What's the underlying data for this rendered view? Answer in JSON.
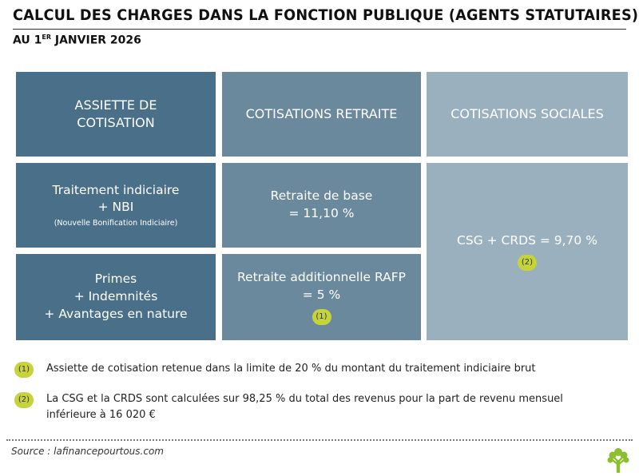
{
  "header": {
    "title": "CALCUL DES CHARGES DANS LA FONCTION PUBLIQUE (AGENTS STATUTAIRES)",
    "subtitle_prefix": "AU 1",
    "subtitle_sup": "ER",
    "subtitle_suffix": " JANVIER 2026"
  },
  "columns": {
    "assiette": {
      "line1": "ASSIETTE DE",
      "line2": "COTISATION"
    },
    "retraite": {
      "label": "COTISATIONS RETRAITE"
    },
    "sociales": {
      "label": "COTISATIONS SOCIALES"
    }
  },
  "cells": {
    "traitement": {
      "line1": "Traitement indiciaire",
      "line2": "+ NBI",
      "small": "(Nouvelle Bonification Indiciaire)"
    },
    "retraite_base": {
      "line1": "Retraite de base",
      "line2": "= 11,10 %"
    },
    "csg": {
      "line1": "CSG + CRDS = 9,70 %",
      "badge": "(2)"
    },
    "primes": {
      "line1": "Primes",
      "line2": "+ Indemnités",
      "line3": "+ Avantages en nature"
    },
    "rafp": {
      "line1": "Retraite additionnelle RAFP",
      "line2": "= 5 %",
      "badge": "(1)"
    }
  },
  "notes": [
    {
      "badge": "(1)",
      "lines": [
        "Assiette de cotisation retenue dans la limite de 20 % du montant du traitement indiciaire brut"
      ]
    },
    {
      "badge": "(2)",
      "lines": [
        "La CSG et la CRDS sont calculées sur 98,25 % du total des revenus pour la part de revenu mensuel",
        "inférieure à 16 020 €"
      ]
    }
  ],
  "source": "Source : lafinancepourtous.com",
  "colors": {
    "assiette_blue": "#4a6f88",
    "retraite_blue": "#6b899d",
    "sociales_blue": "#9ab0bf",
    "badge_green": "#c7d33a"
  },
  "icons": {
    "logo": "tree-icon"
  }
}
